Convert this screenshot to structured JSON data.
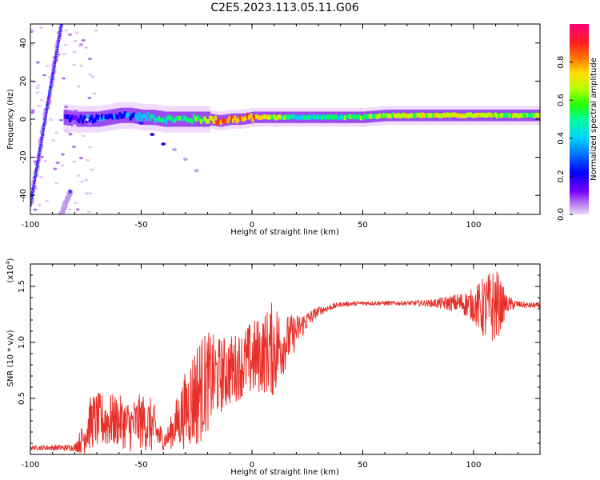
{
  "figure": {
    "title": "C2E5.2023.113.05.11.G06"
  },
  "chart_data": [
    {
      "type": "heatmap",
      "xlabel": "Height of straight line (km)",
      "ylabel": "Frequency (Hz)",
      "xlim": [
        -100,
        130
      ],
      "ylim": [
        -50,
        50
      ],
      "xticks": [
        -100,
        -50,
        0,
        50,
        100
      ],
      "xtick_labels": [
        "-100",
        "-50",
        "0",
        "50",
        "100"
      ],
      "yticks": [
        -40,
        -20,
        0,
        20,
        40
      ],
      "ytick_labels": [
        "-40",
        "-20",
        "0",
        "20",
        "40"
      ],
      "colorbar": {
        "label": "Normalized spectral amplitude",
        "range": [
          0,
          1
        ],
        "ticks": [
          0.0,
          0.2,
          0.4,
          0.6,
          0.8
        ],
        "tick_labels": [
          "0.0",
          "0.2",
          "0.4",
          "0.6",
          "0.8"
        ],
        "colormap": [
          "#e6c8f5",
          "#7a00ff",
          "#0000ff",
          "#00c8ff",
          "#00ff66",
          "#b4ff00",
          "#ffcc00",
          "#ff3300",
          "#ff0066"
        ]
      },
      "features": {
        "main_band": {
          "x": [
            -85,
            -80,
            -75,
            -70,
            -65,
            -60,
            -55,
            -50,
            -45,
            -40,
            -35,
            -30,
            -25,
            -20,
            -15,
            -10,
            -5,
            0,
            10,
            20,
            30,
            40,
            50,
            60,
            70,
            80,
            90,
            100,
            110,
            120,
            130
          ],
          "freq": [
            1,
            0,
            0,
            0,
            1,
            2,
            2,
            1,
            1,
            0,
            0,
            0,
            0,
            0,
            -1,
            0,
            0,
            1,
            1,
            1,
            1,
            1,
            1,
            2,
            2,
            2,
            2,
            2,
            2,
            2,
            2
          ],
          "amplitude": [
            0.2,
            0.3,
            0.3,
            0.35,
            0.35,
            0.35,
            0.35,
            0.4,
            0.45,
            0.5,
            0.55,
            0.55,
            0.6,
            0.75,
            0.85,
            0.85,
            0.85,
            0.85,
            0.6,
            0.5,
            0.5,
            0.55,
            0.6,
            0.7,
            0.7,
            0.7,
            0.7,
            0.75,
            0.7,
            0.65,
            0.6
          ]
        },
        "diagonal_streaks": [
          {
            "x": [
              -100,
              -86
            ],
            "freq": [
              -45,
              50
            ]
          },
          {
            "x": [
              -86,
              -82
            ],
            "freq": [
              -50,
              -38
            ]
          }
        ],
        "side_branch": {
          "x": [
            -50,
            -45,
            -40,
            -35,
            -30,
            -25
          ],
          "freq": [
            -2,
            -8,
            -13,
            -16,
            -21,
            -27
          ]
        }
      }
    },
    {
      "type": "line",
      "xlabel": "Height of straight line (km)",
      "ylabel": "SNR (10 * v/v)",
      "y_multiplier_label": "(x10",
      "y_multiplier_exponent": "4",
      "y_multiplier_suffix": ")",
      "xlim": [
        -100,
        130
      ],
      "ylim": [
        0,
        17000
      ],
      "xticks": [
        -100,
        -50,
        0,
        50,
        100
      ],
      "xtick_labels": [
        "-100",
        "-50",
        "0",
        "50",
        "100"
      ],
      "yticks": [
        5000,
        10000,
        15000
      ],
      "ytick_labels": [
        "0.5",
        "1.0",
        "1.5"
      ],
      "color": "#e8302a",
      "envelope": {
        "x": [
          -100,
          -80,
          -76,
          -74,
          -72,
          -70,
          -65,
          -60,
          -55,
          -50,
          -45,
          -40,
          -38,
          -35,
          -30,
          -25,
          -20,
          -15,
          -10,
          -5,
          0,
          5,
          10,
          15,
          20,
          25,
          30,
          40,
          50,
          60,
          70,
          80,
          90,
          95,
          100,
          105,
          110,
          115,
          120,
          125,
          130
        ],
        "mean": [
          600,
          600,
          1500,
          2500,
          3000,
          3000,
          3000,
          3000,
          2500,
          3000,
          2500,
          1200,
          1500,
          2500,
          4000,
          5500,
          6500,
          7000,
          7500,
          8000,
          8500,
          9000,
          9500,
          10000,
          11000,
          12000,
          12800,
          13400,
          13500,
          13500,
          13500,
          13500,
          13500,
          13500,
          13300,
          13000,
          13300,
          13400,
          13400,
          13300,
          13300
        ],
        "amplitude": [
          200,
          300,
          1500,
          2200,
          2500,
          2500,
          2500,
          2300,
          2300,
          2500,
          2500,
          800,
          1000,
          2000,
          3500,
          5000,
          4500,
          3500,
          3200,
          3000,
          3500,
          3500,
          4500,
          2500,
          1500,
          800,
          400,
          200,
          200,
          200,
          200,
          300,
          700,
          1000,
          1500,
          3000,
          3500,
          800,
          300,
          250,
          250
        ]
      }
    }
  ]
}
